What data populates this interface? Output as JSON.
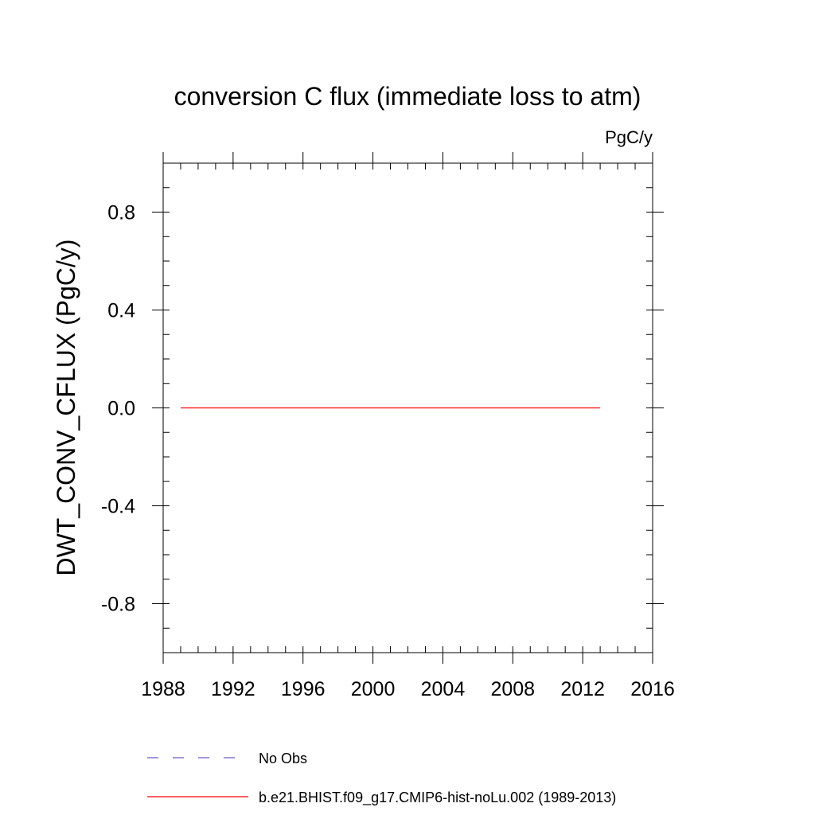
{
  "chart_data": {
    "type": "line",
    "title": "conversion C flux (immediate loss to atm)",
    "units_label": "PgC/y",
    "ylabel": "DWT_CONV_CFLUX  (PgC/y)",
    "xlabel": "",
    "xlim": [
      1988,
      2016
    ],
    "ylim": [
      -1.0,
      1.0
    ],
    "x_ticks": [
      1988,
      1992,
      1996,
      2000,
      2004,
      2008,
      2012,
      2016
    ],
    "x_tick_labels": [
      "1988",
      "1992",
      "1996",
      "2000",
      "2004",
      "2008",
      "2012",
      "2016"
    ],
    "x_minor_step": 1,
    "y_ticks": [
      -0.8,
      -0.4,
      0.0,
      0.4,
      0.8
    ],
    "y_tick_labels": [
      "-0.8",
      "-0.4",
      "0.0",
      "0.4",
      "0.8"
    ],
    "y_minor_step": 0.1,
    "grid": false,
    "legend_position": "bottom",
    "series": [
      {
        "name": "No Obs",
        "color": "#6a5acd",
        "style": "dashed",
        "x": [],
        "values": []
      },
      {
        "name": "b.e21.BHIST.f09_g17.CMIP6-hist-noLu.002 (1989-2013)",
        "color": "#ff0000",
        "style": "solid",
        "x": [
          1989,
          1990,
          1991,
          1992,
          1993,
          1994,
          1995,
          1996,
          1997,
          1998,
          1999,
          2000,
          2001,
          2002,
          2003,
          2004,
          2005,
          2006,
          2007,
          2008,
          2009,
          2010,
          2011,
          2012,
          2013
        ],
        "values": [
          0,
          0,
          0,
          0,
          0,
          0,
          0,
          0,
          0,
          0,
          0,
          0,
          0,
          0,
          0,
          0,
          0,
          0,
          0,
          0,
          0,
          0,
          0,
          0,
          0
        ]
      }
    ]
  }
}
